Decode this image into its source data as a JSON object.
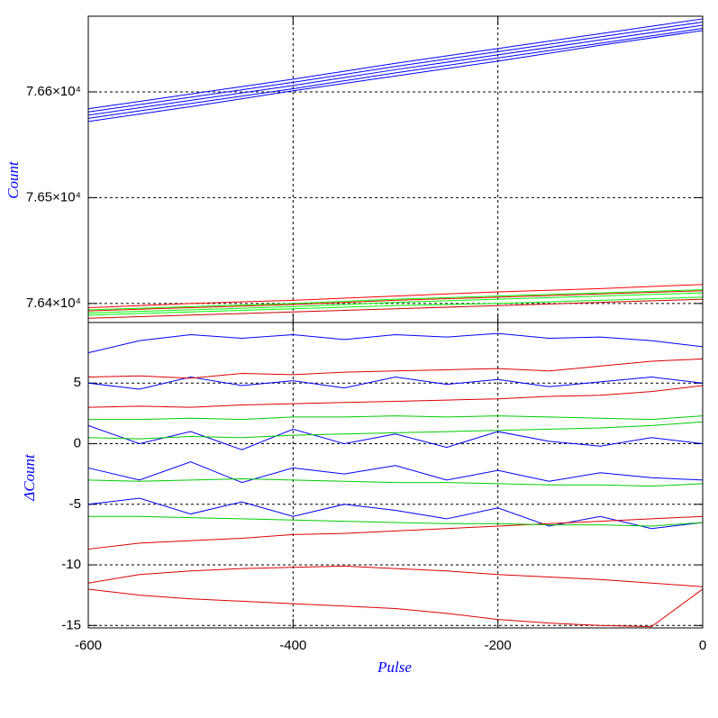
{
  "chart_data": [
    {
      "type": "line",
      "ylabel": "Count",
      "x": [
        -600,
        -500,
        -400,
        -300,
        -200,
        -100,
        0
      ],
      "xlim": [
        -600,
        0
      ],
      "ylim": [
        76382,
        76671.5
      ],
      "yticks": [
        {
          "value": 76400,
          "label": "7.64×10⁴"
        },
        {
          "value": 76500,
          "label": "7.65×10⁴"
        },
        {
          "value": 76600,
          "label": "7.66×10⁴"
        }
      ],
      "grid": true,
      "series": [
        {
          "color": "#0000ff",
          "values": [
            76572,
            76586,
            76601,
            76615,
            76629,
            76644,
            76658
          ]
        },
        {
          "color": "#0000ff",
          "values": [
            76575,
            76589,
            76603,
            76618,
            76632,
            76646,
            76660
          ]
        },
        {
          "color": "#0000ff",
          "values": [
            76578,
            76592,
            76606,
            76621,
            76635,
            76649,
            76663
          ]
        },
        {
          "color": "#0000ff",
          "values": [
            76581,
            76595,
            76609,
            76624,
            76638,
            76652,
            76666
          ]
        },
        {
          "color": "#0000ff",
          "values": [
            76584,
            76598,
            76612,
            76627,
            76641,
            76655,
            76669
          ]
        },
        {
          "color": "#ff0000",
          "values": [
            76396,
            76400,
            76403,
            76407,
            76411,
            76414,
            76418
          ]
        },
        {
          "color": "#ff0000",
          "values": [
            76393,
            76396,
            76399,
            76403,
            76406,
            76409,
            76412
          ]
        },
        {
          "color": "#cc0000",
          "values": [
            76386,
            76389,
            76392,
            76395,
            76398,
            76401,
            76404
          ]
        },
        {
          "color": "#00ff00",
          "values": [
            76391,
            76394,
            76397,
            76401,
            76404,
            76407,
            76410
          ]
        },
        {
          "color": "#00ff00",
          "values": [
            76389,
            76392,
            76395,
            76398,
            76400,
            76403,
            76406
          ]
        },
        {
          "color": "#00ff00",
          "values": [
            76394,
            76397,
            76400,
            76404,
            76407,
            76410,
            76413
          ]
        }
      ]
    },
    {
      "type": "line",
      "ylabel": "ΔCount",
      "xlabel": "Pulse",
      "x": [
        -600,
        -550,
        -500,
        -450,
        -400,
        -350,
        -300,
        -250,
        -200,
        -150,
        -100,
        -50,
        0
      ],
      "xlim": [
        -600,
        0
      ],
      "xticks": [
        -600,
        -400,
        -200,
        0
      ],
      "ylim": [
        -15.2,
        10
      ],
      "yticks": [
        -15,
        -10,
        -5,
        0,
        5
      ],
      "grid": true,
      "series": [
        {
          "color": "#0000ff",
          "values": [
            7.5,
            8.5,
            9,
            8.7,
            9,
            8.6,
            9,
            8.8,
            9.1,
            8.7,
            8.8,
            8.5,
            8
          ]
        },
        {
          "color": "#0000ff",
          "values": [
            5,
            4.5,
            5.5,
            4.8,
            5.2,
            4.6,
            5.5,
            4.9,
            5.3,
            4.7,
            5.1,
            5.5,
            5
          ]
        },
        {
          "color": "#0000ff",
          "values": [
            1.5,
            0,
            1,
            -0.5,
            1.2,
            0,
            0.8,
            -0.3,
            1,
            0.2,
            -0.2,
            0.5,
            0
          ]
        },
        {
          "color": "#0000ff",
          "values": [
            -2,
            -3,
            -1.5,
            -3.2,
            -2,
            -2.5,
            -1.8,
            -3,
            -2.2,
            -3.1,
            -2.4,
            -2.8,
            -3
          ]
        },
        {
          "color": "#0000ff",
          "values": [
            -5,
            -4.5,
            -5.8,
            -4.8,
            -6,
            -5,
            -5.5,
            -6.2,
            -5.3,
            -6.8,
            -6,
            -7,
            -6.5
          ]
        },
        {
          "color": "#dd0000",
          "values": [
            5.5,
            5.6,
            5.4,
            5.8,
            5.7,
            5.9,
            6,
            6.1,
            6.2,
            6,
            6.4,
            6.8,
            7
          ]
        },
        {
          "color": "#dd0000",
          "values": [
            3,
            3.1,
            3,
            3.2,
            3.3,
            3.4,
            3.5,
            3.6,
            3.7,
            3.9,
            4,
            4.3,
            4.8
          ]
        },
        {
          "color": "#dd0000",
          "values": [
            -8.7,
            -8.2,
            -8,
            -7.8,
            -7.5,
            -7.4,
            -7.2,
            -7,
            -6.8,
            -6.6,
            -6.4,
            -6.2,
            -6
          ]
        },
        {
          "color": "#dd0000",
          "values": [
            -11.5,
            -10.8,
            -10.5,
            -10.3,
            -10.2,
            -10.1,
            -10.3,
            -10.5,
            -10.8,
            -11,
            -11.2,
            -11.5,
            -11.8
          ]
        },
        {
          "color": "#dd0000",
          "values": [
            -12,
            -12.5,
            -12.8,
            -13,
            -13.2,
            -13.4,
            -13.6,
            -14,
            -14.5,
            -14.8,
            -15,
            -15.1,
            -12
          ]
        },
        {
          "color": "#00cc00",
          "values": [
            2,
            2,
            2.1,
            2,
            2.2,
            2.2,
            2.3,
            2.2,
            2.3,
            2.2,
            2.1,
            2,
            2.3
          ]
        },
        {
          "color": "#00cc00",
          "values": [
            0.5,
            0.4,
            0.6,
            0.5,
            0.7,
            0.8,
            0.9,
            1,
            1.1,
            1.2,
            1.3,
            1.5,
            1.8
          ]
        },
        {
          "color": "#00cc00",
          "values": [
            -3,
            -3.1,
            -3,
            -2.9,
            -3,
            -3.1,
            -3.2,
            -3.2,
            -3.3,
            -3.4,
            -3.4,
            -3.5,
            -3.3
          ]
        },
        {
          "color": "#00cc00",
          "values": [
            -6,
            -6,
            -6.1,
            -6.2,
            -6.3,
            -6.4,
            -6.5,
            -6.6,
            -6.6,
            -6.7,
            -6.7,
            -6.8,
            -6.5
          ]
        }
      ]
    }
  ]
}
